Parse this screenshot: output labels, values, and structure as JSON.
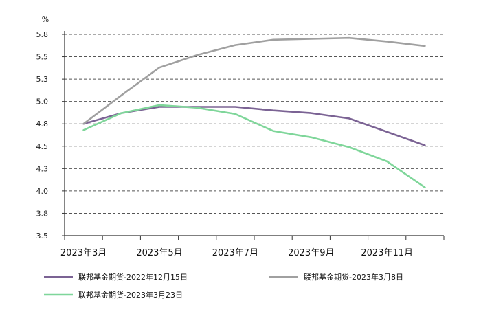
{
  "chart_data": {
    "type": "line",
    "title": "",
    "xlabel": "",
    "ylabel": "%",
    "ylim": [
      3.5,
      5.9
    ],
    "yticks": [
      "3.5",
      "3.8",
      "4.0",
      "4.3",
      "4.5",
      "4.8",
      "5.0",
      "5.3",
      "5.5",
      "5.8"
    ],
    "ytick_values": [
      3.5,
      3.75,
      4.0,
      4.25,
      4.5,
      4.75,
      5.0,
      5.25,
      5.5,
      5.75
    ],
    "xlim": [
      0,
      10
    ],
    "xticks": [
      "2023年3月",
      "2023年5月",
      "2023年7月",
      "2023年9月",
      "2023年11月"
    ],
    "xtick_values": [
      0.5,
      2.5,
      4.5,
      6.5,
      8.5
    ],
    "grid": "horizontal dashed",
    "legend_position": "bottom",
    "series": [
      {
        "name": "联邦基金期货-2022年12月15日",
        "color": "#7b6394",
        "x": [
          0.5,
          1.5,
          2.5,
          3.5,
          4.5,
          5.5,
          6.5,
          7.5,
          8.5,
          9.5
        ],
        "values": [
          4.75,
          4.87,
          4.94,
          4.94,
          4.94,
          4.9,
          4.87,
          4.81,
          4.66,
          4.51
        ]
      },
      {
        "name": "联邦基金期货-2023年3月8日",
        "color": "#a0a0a0",
        "x": [
          0.5,
          1.5,
          2.5,
          3.5,
          4.5,
          5.5,
          6.5,
          7.5,
          8.5,
          9.5
        ],
        "values": [
          4.75,
          5.07,
          5.38,
          5.52,
          5.63,
          5.69,
          5.7,
          5.71,
          5.67,
          5.62
        ]
      },
      {
        "name": "联邦基金期货-2023年3月23日",
        "color": "#7fd69a",
        "x": [
          0.5,
          1.5,
          2.5,
          3.5,
          4.5,
          5.5,
          6.5,
          7.5,
          8.5,
          9.5
        ],
        "values": [
          4.68,
          4.87,
          4.96,
          4.93,
          4.86,
          4.67,
          4.6,
          4.49,
          4.33,
          4.04
        ]
      }
    ]
  }
}
